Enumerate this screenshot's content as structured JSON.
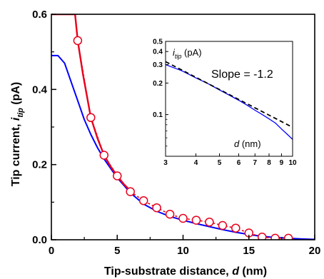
{
  "chart_data": [
    {
      "type": "line",
      "xlabel": "Tip-substrate distance, d (nm)",
      "xlabel_parts": {
        "prefix": "Tip-substrate distance, ",
        "var": "d",
        "suffix": " (nm)"
      },
      "ylabel": "Tip current, i_tip (pA)",
      "ylabel_parts": {
        "prefix": "Tip current, ",
        "var": "i",
        "sub": "tip",
        "suffix": " (pA)"
      },
      "xlim": [
        0,
        20
      ],
      "ylim": [
        0,
        0.6
      ],
      "xticks": [
        "0",
        "5",
        "10",
        "15",
        "20"
      ],
      "yticks": [
        "0.0",
        "0.2",
        "0.4",
        "0.6"
      ],
      "series": [
        {
          "color": "#0000ff",
          "style": "line",
          "x": [
            0.0,
            0.5,
            1.0,
            1.5,
            2.0,
            2.5,
            3.0,
            3.5,
            4.0,
            4.5,
            5.0,
            6.0,
            7.0,
            8.0,
            9.0,
            10.0,
            11.0,
            12.0,
            13.0,
            14.0,
            15.0,
            16.0,
            17.0,
            18.0,
            19.0,
            20.0
          ],
          "y": [
            0.49,
            0.49,
            0.47,
            0.42,
            0.37,
            0.32,
            0.28,
            0.245,
            0.215,
            0.19,
            0.165,
            0.125,
            0.095,
            0.076,
            0.062,
            0.052,
            0.043,
            0.035,
            0.027,
            0.02,
            0.014,
            0.009,
            0.006,
            0.004,
            0.002,
            0.001
          ]
        },
        {
          "color": "#e8001c",
          "style": "line",
          "x": [
            0.0,
            0.3,
            0.8,
            1.3,
            1.8,
            2.0,
            2.4,
            3.0,
            3.5,
            4.0,
            4.5,
            5.0,
            5.5,
            6.0
          ],
          "y": [
            0.6,
            0.6,
            0.6,
            0.6,
            0.6,
            0.53,
            0.44,
            0.325,
            0.27,
            0.225,
            0.195,
            0.17,
            0.148,
            0.13
          ]
        },
        {
          "color": "#e8001c",
          "style": "dashed-markers",
          "marker": "open-circle",
          "x": [
            2,
            3,
            4,
            5,
            6,
            7,
            8,
            9,
            10,
            11,
            12,
            13,
            14,
            15,
            16,
            17,
            18
          ],
          "y": [
            0.53,
            0.325,
            0.225,
            0.17,
            0.128,
            0.104,
            0.085,
            0.068,
            0.057,
            0.052,
            0.047,
            0.038,
            0.031,
            0.018,
            0.007,
            0.004,
            0.004
          ]
        }
      ]
    },
    {
      "type": "line",
      "scale": "log-log",
      "ylabel_parts": {
        "var": "i",
        "sub": "tip",
        "suffix": " (pA)"
      },
      "xlabel_parts": {
        "var": "d",
        "suffix": " (nm)"
      },
      "annotation": "Slope =  -1.2",
      "xlim": [
        3,
        10
      ],
      "ylim": [
        0.04,
        0.5
      ],
      "xtick_values": [
        3,
        4,
        5,
        6,
        7,
        8,
        9,
        10
      ],
      "xticks": [
        "3",
        "4",
        "5",
        "6",
        "7",
        "8",
        "9",
        "10"
      ],
      "ytick_values": [
        0.1,
        0.2,
        0.3,
        0.4,
        0.5
      ],
      "yticks": [
        "0.1",
        "0.2",
        "0.3",
        "0.4",
        "0.5"
      ],
      "series": [
        {
          "color": "#0000ff",
          "style": "line",
          "x": [
            3,
            3.5,
            4,
            4.5,
            5,
            5.5,
            6,
            6.5,
            7,
            7.5,
            8,
            8.5,
            9,
            9.5,
            10
          ],
          "y": [
            0.3,
            0.262,
            0.224,
            0.197,
            0.172,
            0.153,
            0.137,
            0.123,
            0.11,
            0.1,
            0.091,
            0.083,
            0.073,
            0.065,
            0.058
          ]
        },
        {
          "color": "#000000",
          "style": "dashed",
          "x": [
            3,
            10
          ],
          "y": [
            0.32,
            0.0756
          ]
        }
      ]
    }
  ]
}
